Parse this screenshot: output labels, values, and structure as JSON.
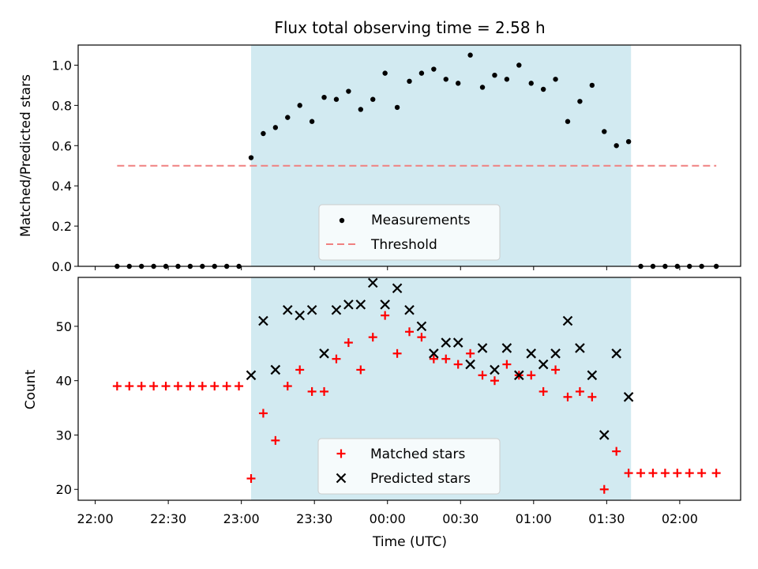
{
  "chart_data": [
    {
      "type": "scatter",
      "title": "Flux total observing time = 2.58 h",
      "xlabel": "",
      "ylabel": "Matched/Predicted stars",
      "ylim": [
        0,
        1.1
      ],
      "yticks": [
        "0.0",
        "0.2",
        "0.4",
        "0.6",
        "0.8",
        "1.0"
      ],
      "xlim": [
        "21:53",
        "02:25"
      ],
      "observing_window": [
        "23:04",
        "01:40"
      ],
      "legend": {
        "placement": "lower center",
        "entries": [
          "Measurements",
          "Threshold"
        ]
      },
      "colors": {
        "measurements": "#000000",
        "threshold": "#f08080",
        "window": "#add8e6"
      },
      "threshold": {
        "name": "Threshold",
        "value": 0.5,
        "x_range": [
          "22:09",
          "02:15"
        ]
      },
      "series": [
        {
          "name": "Measurements",
          "points": [
            [
              "22:09",
              0
            ],
            [
              "22:14",
              0
            ],
            [
              "22:19",
              0
            ],
            [
              "22:24",
              0
            ],
            [
              "22:29",
              0
            ],
            [
              "22:34",
              0
            ],
            [
              "22:39",
              0
            ],
            [
              "22:44",
              0
            ],
            [
              "22:49",
              0
            ],
            [
              "22:54",
              0
            ],
            [
              "22:59",
              0
            ],
            [
              "23:04",
              0.54
            ],
            [
              "23:09",
              0.66
            ],
            [
              "23:14",
              0.69
            ],
            [
              "23:19",
              0.74
            ],
            [
              "23:24",
              0.8
            ],
            [
              "23:29",
              0.72
            ],
            [
              "23:34",
              0.84
            ],
            [
              "23:39",
              0.83
            ],
            [
              "23:44",
              0.87
            ],
            [
              "23:49",
              0.78
            ],
            [
              "23:54",
              0.83
            ],
            [
              "23:59",
              0.96
            ],
            [
              "00:04",
              0.79
            ],
            [
              "00:09",
              0.92
            ],
            [
              "00:14",
              0.96
            ],
            [
              "00:19",
              0.98
            ],
            [
              "00:24",
              0.93
            ],
            [
              "00:29",
              0.91
            ],
            [
              "00:34",
              1.05
            ],
            [
              "00:39",
              0.89
            ],
            [
              "00:44",
              0.95
            ],
            [
              "00:49",
              0.93
            ],
            [
              "00:54",
              1.0
            ],
            [
              "00:59",
              0.91
            ],
            [
              "01:04",
              0.88
            ],
            [
              "01:09",
              0.93
            ],
            [
              "01:14",
              0.72
            ],
            [
              "01:19",
              0.82
            ],
            [
              "01:24",
              0.9
            ],
            [
              "01:29",
              0.67
            ],
            [
              "01:34",
              0.6
            ],
            [
              "01:39",
              0.62
            ],
            [
              "01:44",
              0
            ],
            [
              "01:49",
              0
            ],
            [
              "01:54",
              0
            ],
            [
              "01:59",
              0
            ],
            [
              "02:04",
              0
            ],
            [
              "02:09",
              0
            ],
            [
              "02:15",
              0
            ]
          ]
        }
      ]
    },
    {
      "type": "scatter",
      "title": "",
      "xlabel": "Time (UTC)",
      "ylabel": "Count",
      "ylim": [
        18,
        59
      ],
      "yticks": [
        "20",
        "30",
        "40",
        "50"
      ],
      "xlim": [
        "21:53",
        "02:25"
      ],
      "xticks": [
        "22:00",
        "22:30",
        "23:00",
        "23:30",
        "00:00",
        "00:30",
        "01:00",
        "01:30",
        "02:00"
      ],
      "observing_window": [
        "23:04",
        "01:40"
      ],
      "legend": {
        "placement": "lower center",
        "entries": [
          "Matched stars",
          "Predicted stars"
        ]
      },
      "colors": {
        "matched": "#ff0000",
        "predicted": "#000000",
        "window": "#add8e6"
      },
      "series": [
        {
          "name": "Matched stars",
          "points": [
            [
              "22:09",
              39
            ],
            [
              "22:14",
              39
            ],
            [
              "22:19",
              39
            ],
            [
              "22:24",
              39
            ],
            [
              "22:29",
              39
            ],
            [
              "22:34",
              39
            ],
            [
              "22:39",
              39
            ],
            [
              "22:44",
              39
            ],
            [
              "22:49",
              39
            ],
            [
              "22:54",
              39
            ],
            [
              "22:59",
              39
            ],
            [
              "23:04",
              22
            ],
            [
              "23:09",
              34
            ],
            [
              "23:14",
              29
            ],
            [
              "23:19",
              39
            ],
            [
              "23:24",
              42
            ],
            [
              "23:29",
              38
            ],
            [
              "23:34",
              38
            ],
            [
              "23:39",
              44
            ],
            [
              "23:44",
              47
            ],
            [
              "23:49",
              42
            ],
            [
              "23:54",
              48
            ],
            [
              "23:59",
              52
            ],
            [
              "00:04",
              45
            ],
            [
              "00:09",
              49
            ],
            [
              "00:14",
              48
            ],
            [
              "00:19",
              44
            ],
            [
              "00:24",
              44
            ],
            [
              "00:29",
              43
            ],
            [
              "00:34",
              45
            ],
            [
              "00:39",
              41
            ],
            [
              "00:44",
              40
            ],
            [
              "00:49",
              43
            ],
            [
              "00:54",
              41
            ],
            [
              "00:59",
              41
            ],
            [
              "01:04",
              38
            ],
            [
              "01:09",
              42
            ],
            [
              "01:14",
              37
            ],
            [
              "01:19",
              38
            ],
            [
              "01:24",
              37
            ],
            [
              "01:29",
              20
            ],
            [
              "01:34",
              27
            ],
            [
              "01:39",
              23
            ],
            [
              "01:44",
              23
            ],
            [
              "01:49",
              23
            ],
            [
              "01:54",
              23
            ],
            [
              "01:59",
              23
            ],
            [
              "02:04",
              23
            ],
            [
              "02:09",
              23
            ],
            [
              "02:15",
              23
            ]
          ]
        },
        {
          "name": "Predicted stars",
          "points": [
            [
              "23:04",
              41
            ],
            [
              "23:09",
              51
            ],
            [
              "23:14",
              42
            ],
            [
              "23:19",
              53
            ],
            [
              "23:24",
              52
            ],
            [
              "23:29",
              53
            ],
            [
              "23:34",
              45
            ],
            [
              "23:39",
              53
            ],
            [
              "23:44",
              54
            ],
            [
              "23:49",
              54
            ],
            [
              "23:54",
              58
            ],
            [
              "23:59",
              54
            ],
            [
              "00:04",
              57
            ],
            [
              "00:09",
              53
            ],
            [
              "00:14",
              50
            ],
            [
              "00:19",
              45
            ],
            [
              "00:24",
              47
            ],
            [
              "00:29",
              47
            ],
            [
              "00:34",
              43
            ],
            [
              "00:39",
              46
            ],
            [
              "00:44",
              42
            ],
            [
              "00:49",
              46
            ],
            [
              "00:54",
              41
            ],
            [
              "00:59",
              45
            ],
            [
              "01:04",
              43
            ],
            [
              "01:09",
              45
            ],
            [
              "01:14",
              51
            ],
            [
              "01:19",
              46
            ],
            [
              "01:24",
              41
            ],
            [
              "01:29",
              30
            ],
            [
              "01:34",
              45
            ],
            [
              "01:39",
              37
            ]
          ]
        }
      ]
    }
  ]
}
